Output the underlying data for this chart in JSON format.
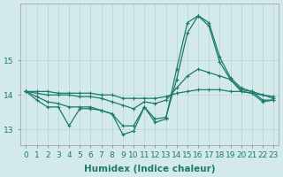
{
  "x": [
    0,
    1,
    2,
    3,
    4,
    5,
    6,
    7,
    8,
    9,
    10,
    11,
    12,
    13,
    14,
    15,
    16,
    17,
    18,
    19,
    20,
    21,
    22,
    23
  ],
  "line1": [
    14.1,
    13.85,
    13.65,
    13.65,
    13.1,
    13.6,
    13.6,
    13.55,
    13.45,
    12.85,
    12.95,
    13.65,
    13.2,
    13.3,
    14.75,
    16.1,
    16.3,
    16.1,
    15.1,
    14.5,
    14.2,
    14.1,
    13.85,
    13.85
  ],
  "line2": [
    14.1,
    13.95,
    13.8,
    13.75,
    13.65,
    13.65,
    13.65,
    13.55,
    13.45,
    13.1,
    13.1,
    13.65,
    13.3,
    13.35,
    14.45,
    15.8,
    16.3,
    16.0,
    14.95,
    14.45,
    14.1,
    14.05,
    13.8,
    13.85
  ],
  "line3": [
    14.1,
    14.05,
    14.0,
    14.0,
    14.0,
    13.95,
    13.95,
    13.9,
    13.8,
    13.7,
    13.6,
    13.8,
    13.75,
    13.85,
    14.2,
    14.55,
    14.75,
    14.65,
    14.55,
    14.45,
    14.15,
    14.1,
    14.0,
    13.9
  ],
  "line4": [
    14.1,
    14.1,
    14.1,
    14.05,
    14.05,
    14.05,
    14.05,
    14.0,
    14.0,
    13.9,
    13.9,
    13.9,
    13.9,
    13.95,
    14.05,
    14.1,
    14.15,
    14.15,
    14.15,
    14.1,
    14.1,
    14.05,
    14.0,
    13.95
  ],
  "bg_color": "#d4eaea",
  "grid_color": "#b5d5d5",
  "line_color": "#1a7a6e",
  "xlabel": "Humidex (Indice chaleur)",
  "ylabel_ticks": [
    13,
    14,
    15
  ],
  "xlim": [
    -0.5,
    23.5
  ],
  "ylim": [
    12.55,
    16.65
  ],
  "xlabel_fontsize": 7.5,
  "tick_fontsize": 6.5,
  "marker": "+",
  "markersize": 3.5,
  "linewidth": 0.9
}
